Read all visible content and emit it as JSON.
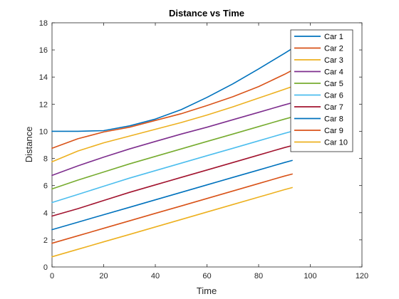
{
  "chart_data": {
    "type": "line",
    "title": "Distance vs Time",
    "xlabel": "Time",
    "ylabel": "Distance",
    "xlim": [
      0,
      120
    ],
    "ylim": [
      0,
      18
    ],
    "xticks": [
      0,
      20,
      40,
      60,
      80,
      100,
      120
    ],
    "yticks": [
      0,
      2,
      4,
      6,
      8,
      10,
      12,
      14,
      16,
      18
    ],
    "grid": false,
    "legend_position": "top-right",
    "series": [
      {
        "name": "Car 1",
        "color": "#0072BD",
        "x": [
          0,
          10,
          20,
          30,
          40,
          50,
          60,
          70,
          80,
          90,
          93
        ],
        "y": [
          10,
          10,
          10.05,
          10.4,
          10.9,
          11.6,
          12.5,
          13.5,
          14.6,
          15.75,
          16.1
        ]
      },
      {
        "name": "Car 2",
        "color": "#D95319",
        "x": [
          0,
          10,
          20,
          30,
          40,
          50,
          60,
          70,
          80,
          90,
          93
        ],
        "y": [
          8.75,
          9.45,
          9.95,
          10.3,
          10.8,
          11.3,
          11.9,
          12.55,
          13.3,
          14.2,
          14.5
        ]
      },
      {
        "name": "Car 3",
        "color": "#EDB120",
        "x": [
          0,
          10,
          20,
          30,
          40,
          50,
          60,
          70,
          80,
          90,
          93
        ],
        "y": [
          7.75,
          8.55,
          9.15,
          9.65,
          10.15,
          10.65,
          11.2,
          11.8,
          12.45,
          13.1,
          13.3
        ]
      },
      {
        "name": "Car 4",
        "color": "#7E2F8E",
        "x": [
          0,
          10,
          20,
          30,
          40,
          50,
          60,
          70,
          80,
          90,
          93
        ],
        "y": [
          6.75,
          7.45,
          8.1,
          8.7,
          9.25,
          9.8,
          10.3,
          10.85,
          11.4,
          11.95,
          12.1
        ]
      },
      {
        "name": "Car 5",
        "color": "#77AC30",
        "x": [
          0,
          10,
          20,
          30,
          40,
          50,
          60,
          70,
          80,
          90,
          93
        ],
        "y": [
          5.75,
          6.4,
          7.0,
          7.6,
          8.15,
          8.7,
          9.25,
          9.8,
          10.35,
          10.9,
          11.05
        ]
      },
      {
        "name": "Car 6",
        "color": "#4DBEEE",
        "x": [
          0,
          10,
          20,
          30,
          40,
          50,
          60,
          70,
          80,
          90,
          93
        ],
        "y": [
          4.75,
          5.35,
          5.95,
          6.55,
          7.1,
          7.65,
          8.2,
          8.75,
          9.3,
          9.85,
          10.0
        ]
      },
      {
        "name": "Car 7",
        "color": "#A2142F",
        "x": [
          0,
          10,
          20,
          30,
          40,
          50,
          60,
          70,
          80,
          90,
          93
        ],
        "y": [
          3.75,
          4.3,
          4.9,
          5.5,
          6.05,
          6.6,
          7.15,
          7.7,
          8.25,
          8.8,
          8.95
        ]
      },
      {
        "name": "Car 8",
        "color": "#0072BD",
        "x": [
          0,
          10,
          20,
          30,
          40,
          50,
          60,
          70,
          80,
          90,
          93
        ],
        "y": [
          2.75,
          3.3,
          3.85,
          4.4,
          4.95,
          5.5,
          6.05,
          6.6,
          7.15,
          7.7,
          7.85
        ]
      },
      {
        "name": "Car 9",
        "color": "#D95319",
        "x": [
          0,
          10,
          20,
          30,
          40,
          50,
          60,
          70,
          80,
          90,
          93
        ],
        "y": [
          1.75,
          2.3,
          2.85,
          3.4,
          3.95,
          4.5,
          5.05,
          5.6,
          6.15,
          6.7,
          6.85
        ]
      },
      {
        "name": "Car 10",
        "color": "#EDB120",
        "x": [
          0,
          10,
          20,
          30,
          40,
          50,
          60,
          70,
          80,
          90,
          93
        ],
        "y": [
          0.75,
          1.3,
          1.85,
          2.4,
          2.95,
          3.5,
          4.05,
          4.6,
          5.15,
          5.7,
          5.85
        ]
      }
    ]
  }
}
